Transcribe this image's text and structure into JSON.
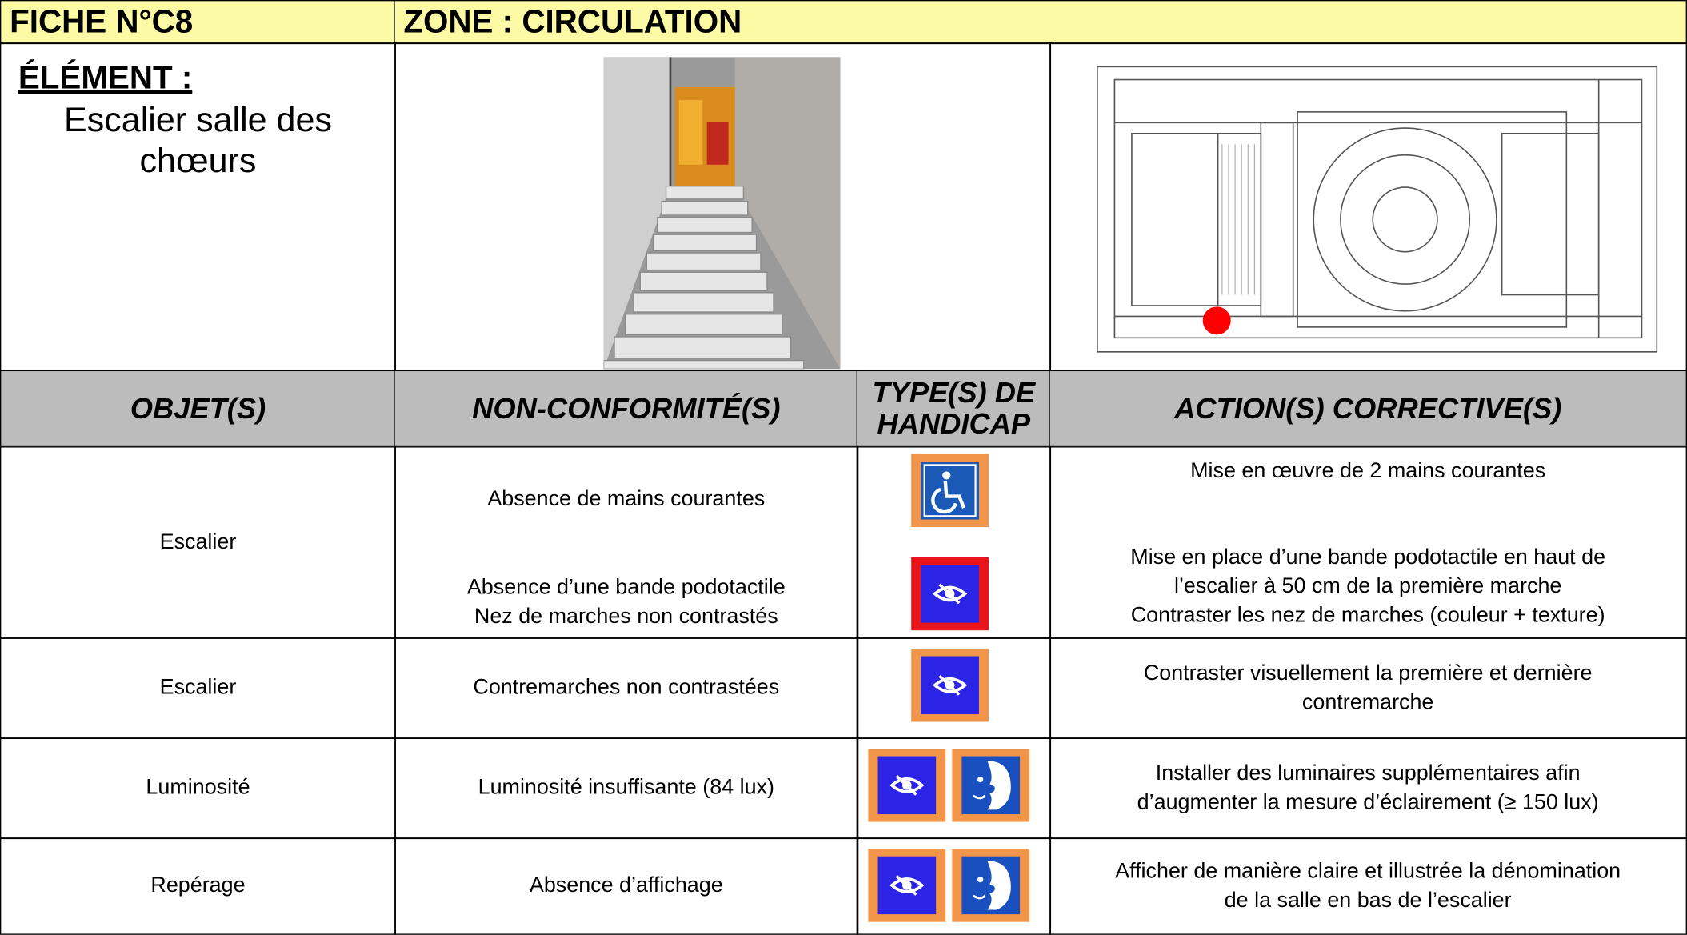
{
  "header": {
    "fiche": "FICHE N°C8",
    "zone": "ZONE : CIRCULATION"
  },
  "element": {
    "label": "ÉLÉMENT :",
    "name_lines": [
      "Escalier salle des",
      "chœurs"
    ]
  },
  "table": {
    "headers": [
      "OBJET(S)",
      "NON-CONFORMITÉ(S)",
      "TYPE(S) DE HANDICAP",
      "ACTION(S) CORRECTIVE(S)"
    ],
    "rows": [
      {
        "objet": "Escalier",
        "nonconformites": [
          [
            "Absence de mains courantes"
          ],
          [
            "Absence d’une bande podotactile",
            "Nez de marches non contrastés"
          ]
        ],
        "actions": [
          [
            "Mise en œuvre de 2 mains courantes"
          ],
          [
            "Mise en place d’une bande podotactile en haut de",
            "l’escalier à 50 cm de la première marche",
            "Contraster les nez de marches (couleur + texture)"
          ]
        ]
      },
      {
        "objet": "Escalier",
        "nonconformites": [
          [
            "Contremarches non contrastées"
          ]
        ],
        "actions": [
          [
            "Contraster visuellement la première et dernière",
            "contremarche"
          ]
        ]
      },
      {
        "objet": "Luminosité",
        "nonconformites": [
          [
            "Luminosité insuffisante (84 lux)"
          ]
        ],
        "actions": [
          [
            "Installer des luminaires supplémentaires afin",
            "d’augmenter la mesure d’éclairement (≥ 150 lux)"
          ]
        ]
      },
      {
        "objet": "Repérage",
        "nonconformites": [
          [
            "Absence d’affichage"
          ]
        ],
        "actions": [
          [
            "Afficher de manière claire et illustrée la dénomination",
            "de la salle en bas de l’escalier"
          ]
        ]
      }
    ]
  }
}
